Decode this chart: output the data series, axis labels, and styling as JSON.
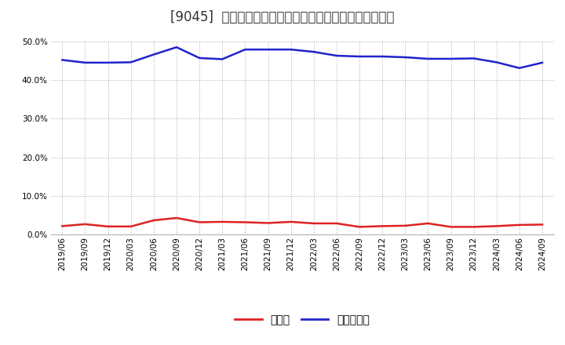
{
  "title": "[9045]  現預金、有利子負債の総資産に対する比率の推移",
  "x_labels": [
    "2019/06",
    "2019/09",
    "2019/12",
    "2020/03",
    "2020/06",
    "2020/09",
    "2020/12",
    "2021/03",
    "2021/06",
    "2021/09",
    "2021/12",
    "2022/03",
    "2022/06",
    "2022/09",
    "2022/12",
    "2023/03",
    "2023/06",
    "2023/09",
    "2023/12",
    "2024/03",
    "2024/06",
    "2024/09"
  ],
  "cash": [
    2.2,
    2.7,
    2.1,
    2.1,
    3.7,
    4.3,
    3.2,
    3.3,
    3.2,
    3.0,
    3.3,
    2.9,
    2.9,
    2.0,
    2.2,
    2.3,
    2.9,
    2.0,
    2.0,
    2.2,
    2.5,
    2.6
  ],
  "debt": [
    45.2,
    44.5,
    44.5,
    44.6,
    46.6,
    48.5,
    45.7,
    45.4,
    47.9,
    47.9,
    47.9,
    47.3,
    46.3,
    46.1,
    46.1,
    45.9,
    45.5,
    45.5,
    45.6,
    44.6,
    43.1,
    44.5
  ],
  "cash_color": "#dd2222",
  "debt_color": "#2222cc",
  "background_color": "#ffffff",
  "plot_bg_color": "#ffffff",
  "grid_color": "#aaaaaa",
  "ylim": [
    0.0,
    50.0
  ],
  "yticks": [
    0.0,
    10.0,
    20.0,
    30.0,
    40.0,
    50.0
  ],
  "legend_cash": "現預金",
  "legend_debt": "有利子負債",
  "title_fontsize": 12,
  "axis_fontsize": 7.5,
  "legend_fontsize": 10
}
